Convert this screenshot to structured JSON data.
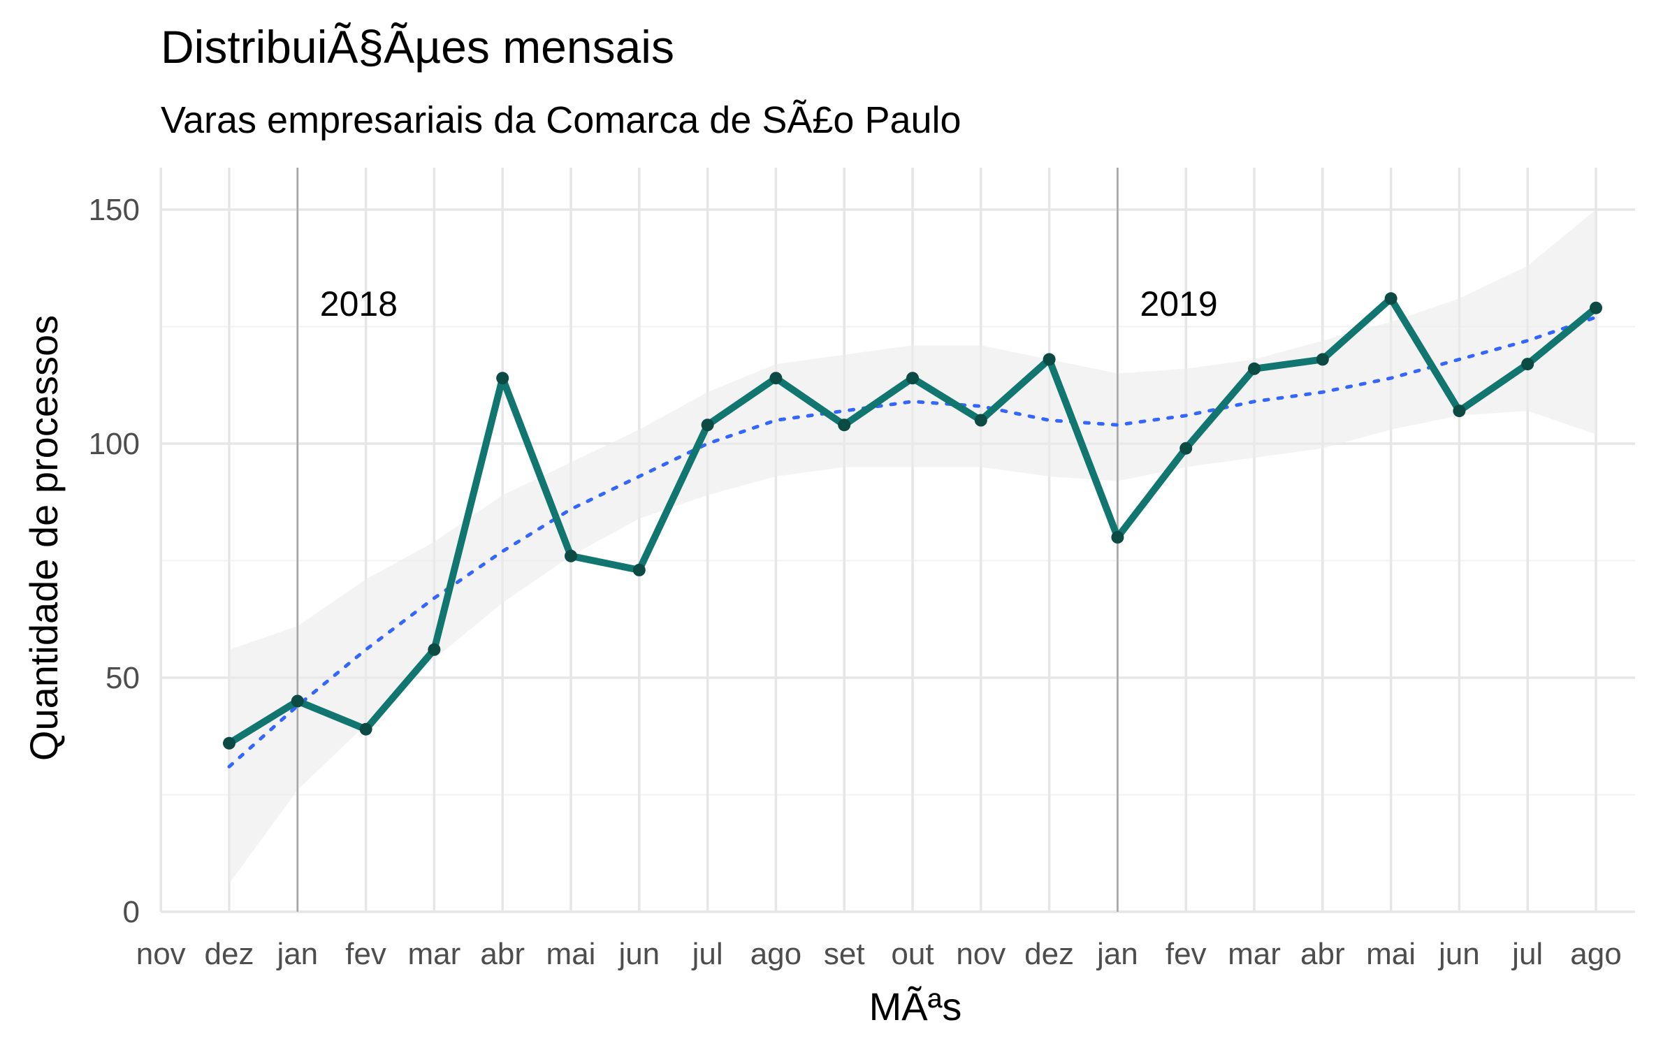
{
  "chart_data": {
    "type": "line",
    "title": "DistribuiÃ§Ãµes mensais",
    "subtitle": "Varas empresariais da Comarca de SÃ£o Paulo",
    "xlabel": "MÃªs",
    "ylabel": "Quantidade de processos",
    "ylim": [
      0,
      160
    ],
    "yticks": [
      0,
      50,
      100,
      150
    ],
    "grid": true,
    "x_tick_labels": [
      "nov",
      "dez",
      "jan",
      "fev",
      "mar",
      "abr",
      "mai",
      "jun",
      "jul",
      "ago",
      "set",
      "out",
      "nov",
      "dez",
      "jan",
      "fev",
      "mar",
      "abr",
      "mai",
      "jun",
      "jul",
      "ago"
    ],
    "x_dates": [
      "2017-11-01",
      "2017-12-01",
      "2018-01-01",
      "2018-02-01",
      "2018-03-01",
      "2018-04-01",
      "2018-05-01",
      "2018-06-01",
      "2018-07-01",
      "2018-08-01",
      "2018-09-01",
      "2018-10-01",
      "2018-11-01",
      "2018-12-01",
      "2019-01-01",
      "2019-02-01",
      "2019-03-01",
      "2019-04-01",
      "2019-05-01",
      "2019-06-01",
      "2019-07-01",
      "2019-08-01"
    ],
    "series": [
      {
        "color": "#11766f",
        "x": [
          "2017-12-01",
          "2018-01-01",
          "2018-02-01",
          "2018-03-01",
          "2018-04-01",
          "2018-05-01",
          "2018-06-01",
          "2018-07-01",
          "2018-08-01",
          "2018-09-01",
          "2018-10-01",
          "2018-11-01",
          "2018-12-01",
          "2019-01-01",
          "2019-02-01",
          "2019-03-01",
          "2019-04-01",
          "2019-05-01",
          "2019-06-01",
          "2019-07-01",
          "2019-08-01"
        ],
        "values": [
          36,
          45,
          39,
          56,
          114,
          76,
          73,
          104,
          114,
          104,
          114,
          105,
          118,
          80,
          99,
          116,
          118,
          131,
          107,
          117,
          129
        ]
      }
    ],
    "smooth": {
      "color": "#3366ff",
      "band_color": "#ebebeb",
      "x": [
        "2017-12-01",
        "2018-01-01",
        "2018-02-01",
        "2018-03-01",
        "2018-04-01",
        "2018-05-01",
        "2018-06-01",
        "2018-07-01",
        "2018-08-01",
        "2018-09-01",
        "2018-10-01",
        "2018-11-01",
        "2018-12-01",
        "2019-01-01",
        "2019-02-01",
        "2019-03-01",
        "2019-04-01",
        "2019-05-01",
        "2019-06-01",
        "2019-07-01",
        "2019-08-01"
      ],
      "fit": [
        31,
        44,
        56,
        67,
        77,
        86,
        93,
        100,
        105,
        107,
        109,
        108,
        105,
        104,
        106,
        109,
        111,
        114,
        118,
        122,
        127
      ],
      "lower": [
        6,
        26,
        40,
        54,
        66,
        76,
        84,
        89,
        93,
        95,
        95,
        95,
        93,
        92,
        95,
        97,
        99,
        103,
        106,
        107,
        102
      ],
      "upper": [
        56,
        61,
        71,
        79,
        89,
        96,
        103,
        111,
        117,
        119,
        121,
        121,
        118,
        115,
        116,
        118,
        122,
        126,
        131,
        138,
        150
      ]
    },
    "year_markers": [
      {
        "x": "2018-01-01",
        "label": "2018"
      },
      {
        "x": "2019-01-01",
        "label": "2019"
      }
    ],
    "year_label_y": 130
  }
}
